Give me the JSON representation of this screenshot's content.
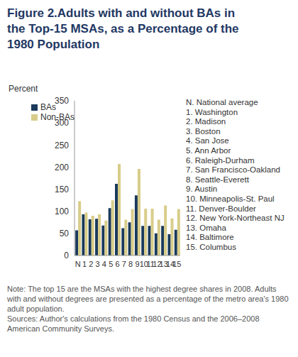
{
  "chart_data": {
    "type": "bar",
    "title": "Figure 2.Adults with and without BAs in the Top-15 MSAs, as a Percentage of the 1980 Population",
    "y_label": "Percent",
    "categories": [
      "N",
      "1",
      "2",
      "3",
      "4",
      "5",
      "6",
      "7",
      "8",
      "9",
      "10",
      "11",
      "12",
      "13",
      "14",
      "15"
    ],
    "series": [
      {
        "name": "BAs",
        "color": "#1b3a5c",
        "values": [
          57,
          93,
          82,
          83,
          68,
          107,
          162,
          62,
          75,
          136,
          67,
          67,
          50,
          67,
          48,
          58
        ]
      },
      {
        "name": "Non-BAs",
        "color": "#d8cd8a",
        "values": [
          123,
          97,
          90,
          93,
          79,
          125,
          207,
          81,
          105,
          196,
          106,
          106,
          81,
          113,
          84,
          105
        ]
      }
    ],
    "ylim": [
      0,
      350
    ],
    "yticks": [
      0,
      50,
      100,
      150,
      200,
      250,
      300,
      350
    ],
    "grid": false,
    "legend": "top-left",
    "key": [
      "N. National average",
      "1. Washington",
      "2. Madison",
      "3. Boston",
      "4. San Jose",
      "5. Ann Arbor",
      "6. Raleigh-Durham",
      "7. San Francisco-Oakland",
      "8. Seattle-Everett",
      "9. Austin",
      "10. Minneapolis-St. Paul",
      "11. Denver-Boulder",
      "12. New York-Northeast NJ",
      "13. Omaha",
      "14. Baltimore",
      "15. Columbus"
    ],
    "note": "Note: The top 15 are the MSAs with the highest degree shares in 2008. Adults with and without degrees are presented as a percentage of the metro area's 1980 adult population.",
    "sources": "Sources: Author's calculations from the 1980 Census and the 2006–2008 American Community Surveys."
  }
}
